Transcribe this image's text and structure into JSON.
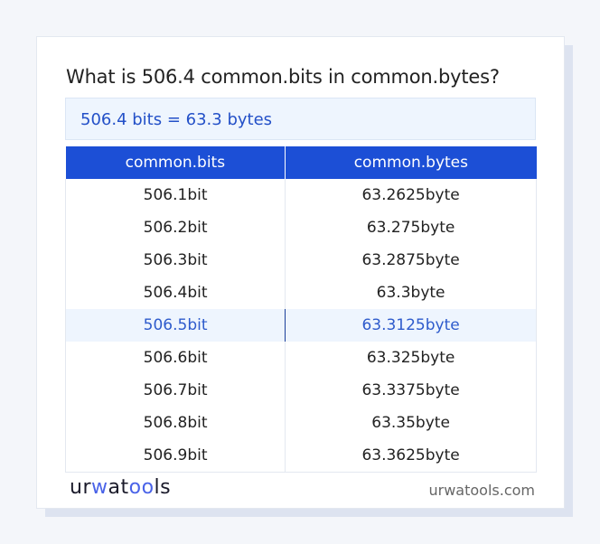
{
  "title": "What is 506.4 common.bits in common.bytes?",
  "answer": "506.4 bits = 63.3 bytes",
  "table": {
    "headers": [
      "common.bits",
      "common.bytes"
    ],
    "rows": [
      [
        "506.1bit",
        "63.2625byte"
      ],
      [
        "506.2bit",
        "63.275byte"
      ],
      [
        "506.3bit",
        "63.2875byte"
      ],
      [
        "506.4bit",
        "63.3byte"
      ],
      [
        "506.5bit",
        "63.3125byte"
      ],
      [
        "506.6bit",
        "63.325byte"
      ],
      [
        "506.7bit",
        "63.3375byte"
      ],
      [
        "506.8bit",
        "63.35byte"
      ],
      [
        "506.9bit",
        "63.3625byte"
      ]
    ],
    "highlighted_row": 4
  },
  "footer": {
    "logo": "urwatools",
    "logo_parts": [
      "ur",
      "w",
      "at",
      "oo",
      "ls"
    ],
    "site": "urwatools.com"
  },
  "colors": {
    "accent": "#1c4fd6",
    "highlight_bg": "#eef5fe",
    "highlight_text": "#2e5bcc"
  }
}
